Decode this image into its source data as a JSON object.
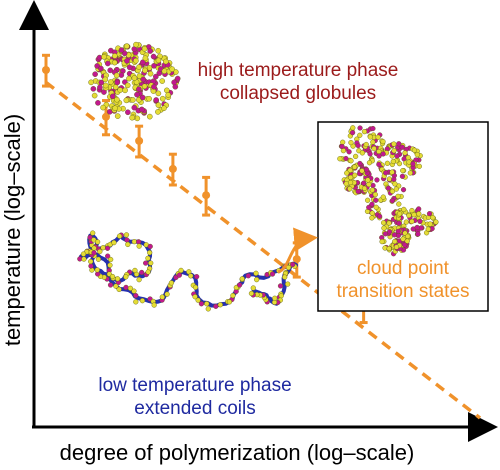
{
  "chart_data": {
    "type": "scatter",
    "title": "",
    "xlabel": "degree of polymerization (log–scale)",
    "ylabel": "temperature (log–scale)",
    "xscale": "log",
    "yscale": "log",
    "tick_labels": "none",
    "grid": false,
    "legend": "none",
    "series": [
      {
        "type": "errorbar",
        "color": "#f0922b",
        "points": [
          {
            "x": 1.0,
            "y": 1.0,
            "err": 0.09
          },
          {
            "x": 2.2,
            "y": 0.76,
            "err": 0.1
          },
          {
            "x": 3.4,
            "y": 0.66,
            "err": 0.09
          },
          {
            "x": 5.3,
            "y": 0.56,
            "err": 0.09
          },
          {
            "x": 8.2,
            "y": 0.48,
            "err": 0.11
          },
          {
            "x": 27.0,
            "y": 0.33,
            "err": 0.1
          },
          {
            "x": 65.0,
            "y": 0.25,
            "err": 0.09
          }
        ]
      },
      {
        "type": "dashed-line",
        "color": "#f0922b",
        "from": {
          "x": 1.0,
          "y": 0.93
        },
        "to": {
          "x": 300.0,
          "y": 0.13
        }
      }
    ],
    "annotations": [
      {
        "lines": [
          "high temperature phase",
          "collapsed globules"
        ],
        "color": "#9b1b1b"
      },
      {
        "lines": [
          "low temperature phase",
          "extended coils"
        ],
        "color": "#1f2aa0"
      },
      {
        "lines": [
          "cloud point",
          "transition states"
        ],
        "color": "#f0922b"
      }
    ],
    "colors": {
      "axis": "#000000",
      "orange": "#f0922b",
      "dark_red": "#9b1b1b",
      "dark_blue": "#1f2aa0",
      "bead_yellow": "#e4dc35",
      "bead_magenta": "#c1188f",
      "bead_blue": "#2630b0"
    }
  }
}
